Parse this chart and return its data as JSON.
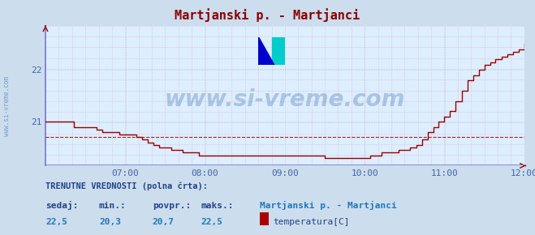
{
  "title": "Martjanski p. - Martjanci",
  "title_color": "#8b0000",
  "bg_color": "#ccdded",
  "plot_bg_color": "#ddeeff",
  "line_color": "#990000",
  "avg_line_color": "#990000",
  "x_axis_color": "#6666bb",
  "yticks": [
    21,
    22
  ],
  "ylim": [
    20.15,
    22.85
  ],
  "tick_color": "#4466aa",
  "xtick_labels": [
    "07:00",
    "08:00",
    "09:00",
    "10:00",
    "11:00",
    "12:00"
  ],
  "xtick_positions": [
    0.167,
    0.333,
    0.5,
    0.667,
    0.833,
    1.0
  ],
  "avg_value": 20.7,
  "watermark": "www.si-vreme.com",
  "watermark_color": "#3366aa",
  "watermark_alpha": 0.3,
  "footer_label1": "TRENUTNE VREDNOSTI (polna črta):",
  "footer_sedaj_label": "sedaj:",
  "footer_min_label": "min.:",
  "footer_povpr_label": "povpr.:",
  "footer_maks_label": "maks.:",
  "footer_sedaj": "22,5",
  "footer_min": "20,3",
  "footer_povpr": "20,7",
  "footer_maks": "22,5",
  "footer_station": "Martjanski p. - Martjanci",
  "footer_param": "temperatura[C]",
  "time_data": [
    0.0,
    0.012,
    0.024,
    0.036,
    0.048,
    0.06,
    0.072,
    0.083,
    0.095,
    0.107,
    0.119,
    0.131,
    0.143,
    0.155,
    0.167,
    0.179,
    0.19,
    0.202,
    0.214,
    0.226,
    0.238,
    0.25,
    0.262,
    0.274,
    0.286,
    0.298,
    0.31,
    0.321,
    0.333,
    0.345,
    0.357,
    0.369,
    0.381,
    0.393,
    0.405,
    0.417,
    0.429,
    0.44,
    0.452,
    0.464,
    0.476,
    0.488,
    0.5,
    0.512,
    0.524,
    0.536,
    0.548,
    0.56,
    0.571,
    0.583,
    0.595,
    0.607,
    0.619,
    0.631,
    0.643,
    0.655,
    0.667,
    0.679,
    0.69,
    0.702,
    0.714,
    0.726,
    0.738,
    0.75,
    0.762,
    0.774,
    0.786,
    0.798,
    0.81,
    0.821,
    0.833,
    0.845,
    0.857,
    0.869,
    0.881,
    0.893,
    0.905,
    0.917,
    0.929,
    0.94,
    0.952,
    0.964,
    0.976,
    0.988,
    1.0
  ],
  "temp_data": [
    21.0,
    21.0,
    21.0,
    21.0,
    21.0,
    20.9,
    20.9,
    20.9,
    20.9,
    20.85,
    20.8,
    20.8,
    20.8,
    20.75,
    20.75,
    20.75,
    20.7,
    20.65,
    20.6,
    20.55,
    20.5,
    20.5,
    20.45,
    20.45,
    20.4,
    20.4,
    20.4,
    20.35,
    20.35,
    20.35,
    20.35,
    20.35,
    20.35,
    20.35,
    20.35,
    20.35,
    20.35,
    20.35,
    20.35,
    20.35,
    20.35,
    20.35,
    20.35,
    20.35,
    20.35,
    20.35,
    20.35,
    20.35,
    20.35,
    20.3,
    20.3,
    20.3,
    20.3,
    20.3,
    20.3,
    20.3,
    20.3,
    20.35,
    20.35,
    20.4,
    20.4,
    20.4,
    20.45,
    20.45,
    20.5,
    20.55,
    20.65,
    20.8,
    20.9,
    21.0,
    21.1,
    21.2,
    21.4,
    21.6,
    21.8,
    21.9,
    22.0,
    22.1,
    22.15,
    22.2,
    22.25,
    22.3,
    22.35,
    22.4,
    22.5
  ]
}
